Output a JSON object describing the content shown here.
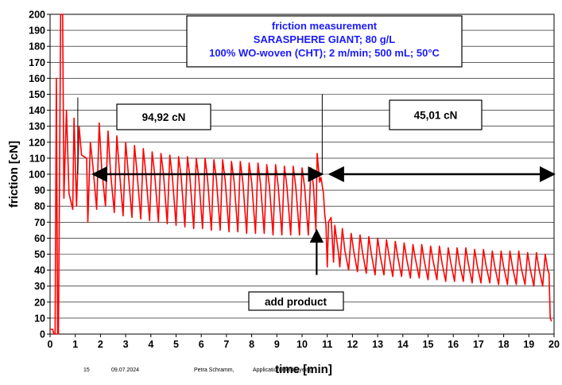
{
  "chart_data": {
    "type": "line",
    "title_lines": [
      "friction measurement",
      "SARASPHERE GIANT; 80 g/L",
      "100%  WO-woven (CHT); 2 m/min;  500 mL;  50°C"
    ],
    "xlabel": "time [min]",
    "ylabel": "friction [cN]",
    "xlim": [
      0,
      20
    ],
    "ylim": [
      0,
      200
    ],
    "x_ticks": [
      "0",
      "1",
      "2",
      "3",
      "4",
      "5",
      "6",
      "7",
      "8",
      "9",
      "10",
      "11",
      "12",
      "13",
      "14",
      "15",
      "16",
      "17",
      "18",
      "19",
      "20"
    ],
    "y_ticks": [
      "0",
      "10",
      "20",
      "30",
      "40",
      "50",
      "60",
      "70",
      "80",
      "90",
      "100",
      "110",
      "120",
      "130",
      "140",
      "150",
      "160",
      "170",
      "180",
      "190",
      "200"
    ],
    "grid": true,
    "line_color": "#ff0000",
    "title_color": "#1a1aff",
    "phases": [
      {
        "label": "94,92 cN",
        "x_start": 1.7,
        "x_end": 10.8,
        "mean_value": 100
      },
      {
        "label": "45,01 cN",
        "x_start": 11.1,
        "x_end": 20.0,
        "mean_value": 100
      }
    ],
    "annotation": {
      "label": "add product",
      "x": 10.8,
      "arrow_y_from": 37,
      "arrow_y_to": 65
    },
    "series": [
      {
        "points": [
          [
            0.0,
            3
          ],
          [
            0.1,
            3
          ],
          [
            0.15,
            0
          ],
          [
            0.2,
            0
          ],
          [
            0.25,
            160
          ],
          [
            0.3,
            0
          ],
          [
            0.33,
            0
          ],
          [
            0.36,
            60
          ],
          [
            0.42,
            200
          ],
          [
            0.5,
            200
          ],
          [
            0.55,
            85
          ],
          [
            0.65,
            140
          ],
          [
            0.75,
            88
          ],
          [
            0.9,
            78
          ],
          [
            0.95,
            135
          ],
          [
            1.05,
            80
          ],
          [
            1.15,
            130
          ],
          [
            1.25,
            112
          ],
          [
            1.45,
            110
          ],
          [
            1.5,
            70
          ],
          [
            1.6,
            120
          ],
          [
            1.7,
            105
          ],
          [
            1.85,
            78
          ],
          [
            1.95,
            132
          ],
          [
            2.05,
            103
          ],
          [
            2.2,
            80
          ],
          [
            2.3,
            127
          ],
          [
            2.4,
            101
          ],
          [
            2.55,
            76
          ],
          [
            2.65,
            124
          ],
          [
            2.75,
            102
          ],
          [
            2.9,
            74
          ],
          [
            3.0,
            120
          ],
          [
            3.1,
            101
          ],
          [
            3.25,
            73
          ],
          [
            3.35,
            118
          ],
          [
            3.45,
            101
          ],
          [
            3.6,
            72
          ],
          [
            3.7,
            116
          ],
          [
            3.8,
            100
          ],
          [
            3.95,
            71
          ],
          [
            4.05,
            114
          ],
          [
            4.15,
            100
          ],
          [
            4.3,
            70
          ],
          [
            4.4,
            113
          ],
          [
            4.5,
            100
          ],
          [
            4.65,
            69
          ],
          [
            4.75,
            112
          ],
          [
            4.85,
            99
          ],
          [
            5.0,
            68
          ],
          [
            5.1,
            111
          ],
          [
            5.2,
            99
          ],
          [
            5.35,
            67
          ],
          [
            5.45,
            111
          ],
          [
            5.55,
            98
          ],
          [
            5.7,
            66
          ],
          [
            5.8,
            110
          ],
          [
            5.9,
            98
          ],
          [
            6.05,
            66
          ],
          [
            6.15,
            110
          ],
          [
            6.25,
            97
          ],
          [
            6.4,
            65
          ],
          [
            6.5,
            109
          ],
          [
            6.6,
            97
          ],
          [
            6.75,
            65
          ],
          [
            6.85,
            109
          ],
          [
            6.95,
            96
          ],
          [
            7.1,
            64
          ],
          [
            7.2,
            108
          ],
          [
            7.3,
            96
          ],
          [
            7.45,
            64
          ],
          [
            7.55,
            108
          ],
          [
            7.65,
            95
          ],
          [
            7.8,
            63
          ],
          [
            7.9,
            107
          ],
          [
            8.0,
            95
          ],
          [
            8.15,
            63
          ],
          [
            8.25,
            107
          ],
          [
            8.35,
            94
          ],
          [
            8.5,
            63
          ],
          [
            8.6,
            106
          ],
          [
            8.7,
            93
          ],
          [
            8.85,
            62
          ],
          [
            8.95,
            106
          ],
          [
            9.05,
            93
          ],
          [
            9.2,
            62
          ],
          [
            9.3,
            105
          ],
          [
            9.4,
            92
          ],
          [
            9.55,
            62
          ],
          [
            9.65,
            105
          ],
          [
            9.75,
            92
          ],
          [
            9.9,
            62
          ],
          [
            10.0,
            104
          ],
          [
            10.1,
            92
          ],
          [
            10.25,
            62
          ],
          [
            10.35,
            104
          ],
          [
            10.45,
            93
          ],
          [
            10.55,
            65
          ],
          [
            10.6,
            113
          ],
          [
            10.7,
            95
          ],
          [
            10.75,
            98
          ],
          [
            10.85,
            88
          ],
          [
            10.9,
            75
          ],
          [
            10.95,
            68
          ],
          [
            11.0,
            42
          ],
          [
            11.05,
            70
          ],
          [
            11.15,
            73
          ],
          [
            11.25,
            45
          ],
          [
            11.3,
            68
          ],
          [
            11.45,
            50
          ],
          [
            11.5,
            42
          ],
          [
            11.6,
            66
          ],
          [
            11.7,
            52
          ],
          [
            11.85,
            40
          ],
          [
            11.95,
            63
          ],
          [
            12.05,
            52
          ],
          [
            12.2,
            39
          ],
          [
            12.3,
            62
          ],
          [
            12.4,
            51
          ],
          [
            12.55,
            38
          ],
          [
            12.65,
            61
          ],
          [
            12.75,
            50
          ],
          [
            12.9,
            37
          ],
          [
            13.0,
            60
          ],
          [
            13.1,
            49
          ],
          [
            13.25,
            37
          ],
          [
            13.35,
            59
          ],
          [
            13.45,
            49
          ],
          [
            13.6,
            36
          ],
          [
            13.7,
            58
          ],
          [
            13.8,
            48
          ],
          [
            13.95,
            36
          ],
          [
            14.05,
            57
          ],
          [
            14.15,
            47
          ],
          [
            14.3,
            35
          ],
          [
            14.4,
            56
          ],
          [
            14.5,
            47
          ],
          [
            14.65,
            35
          ],
          [
            14.75,
            56
          ],
          [
            14.85,
            46
          ],
          [
            15.0,
            34
          ],
          [
            15.1,
            55
          ],
          [
            15.2,
            46
          ],
          [
            15.35,
            34
          ],
          [
            15.45,
            55
          ],
          [
            15.55,
            45
          ],
          [
            15.7,
            33
          ],
          [
            15.8,
            54
          ],
          [
            15.9,
            45
          ],
          [
            16.05,
            33
          ],
          [
            16.15,
            54
          ],
          [
            16.25,
            44
          ],
          [
            16.4,
            33
          ],
          [
            16.5,
            54
          ],
          [
            16.6,
            44
          ],
          [
            16.75,
            32
          ],
          [
            16.85,
            53
          ],
          [
            16.95,
            43
          ],
          [
            17.1,
            32
          ],
          [
            17.2,
            53
          ],
          [
            17.3,
            43
          ],
          [
            17.45,
            32
          ],
          [
            17.55,
            52
          ],
          [
            17.65,
            42
          ],
          [
            17.8,
            31
          ],
          [
            17.9,
            52
          ],
          [
            18.0,
            42
          ],
          [
            18.15,
            31
          ],
          [
            18.25,
            52
          ],
          [
            18.35,
            42
          ],
          [
            18.5,
            31
          ],
          [
            18.6,
            52
          ],
          [
            18.7,
            41
          ],
          [
            18.85,
            31
          ],
          [
            18.95,
            51
          ],
          [
            19.05,
            41
          ],
          [
            19.2,
            30
          ],
          [
            19.3,
            51
          ],
          [
            19.4,
            41
          ],
          [
            19.55,
            30
          ],
          [
            19.65,
            50
          ],
          [
            19.75,
            40
          ],
          [
            19.8,
            38
          ],
          [
            19.85,
            10
          ],
          [
            19.9,
            8
          ]
        ]
      }
    ]
  },
  "footer": {
    "page": "15",
    "date": "09.07.2024",
    "author": "Petra Schramm,",
    "department": "Application Field Dyeing"
  }
}
